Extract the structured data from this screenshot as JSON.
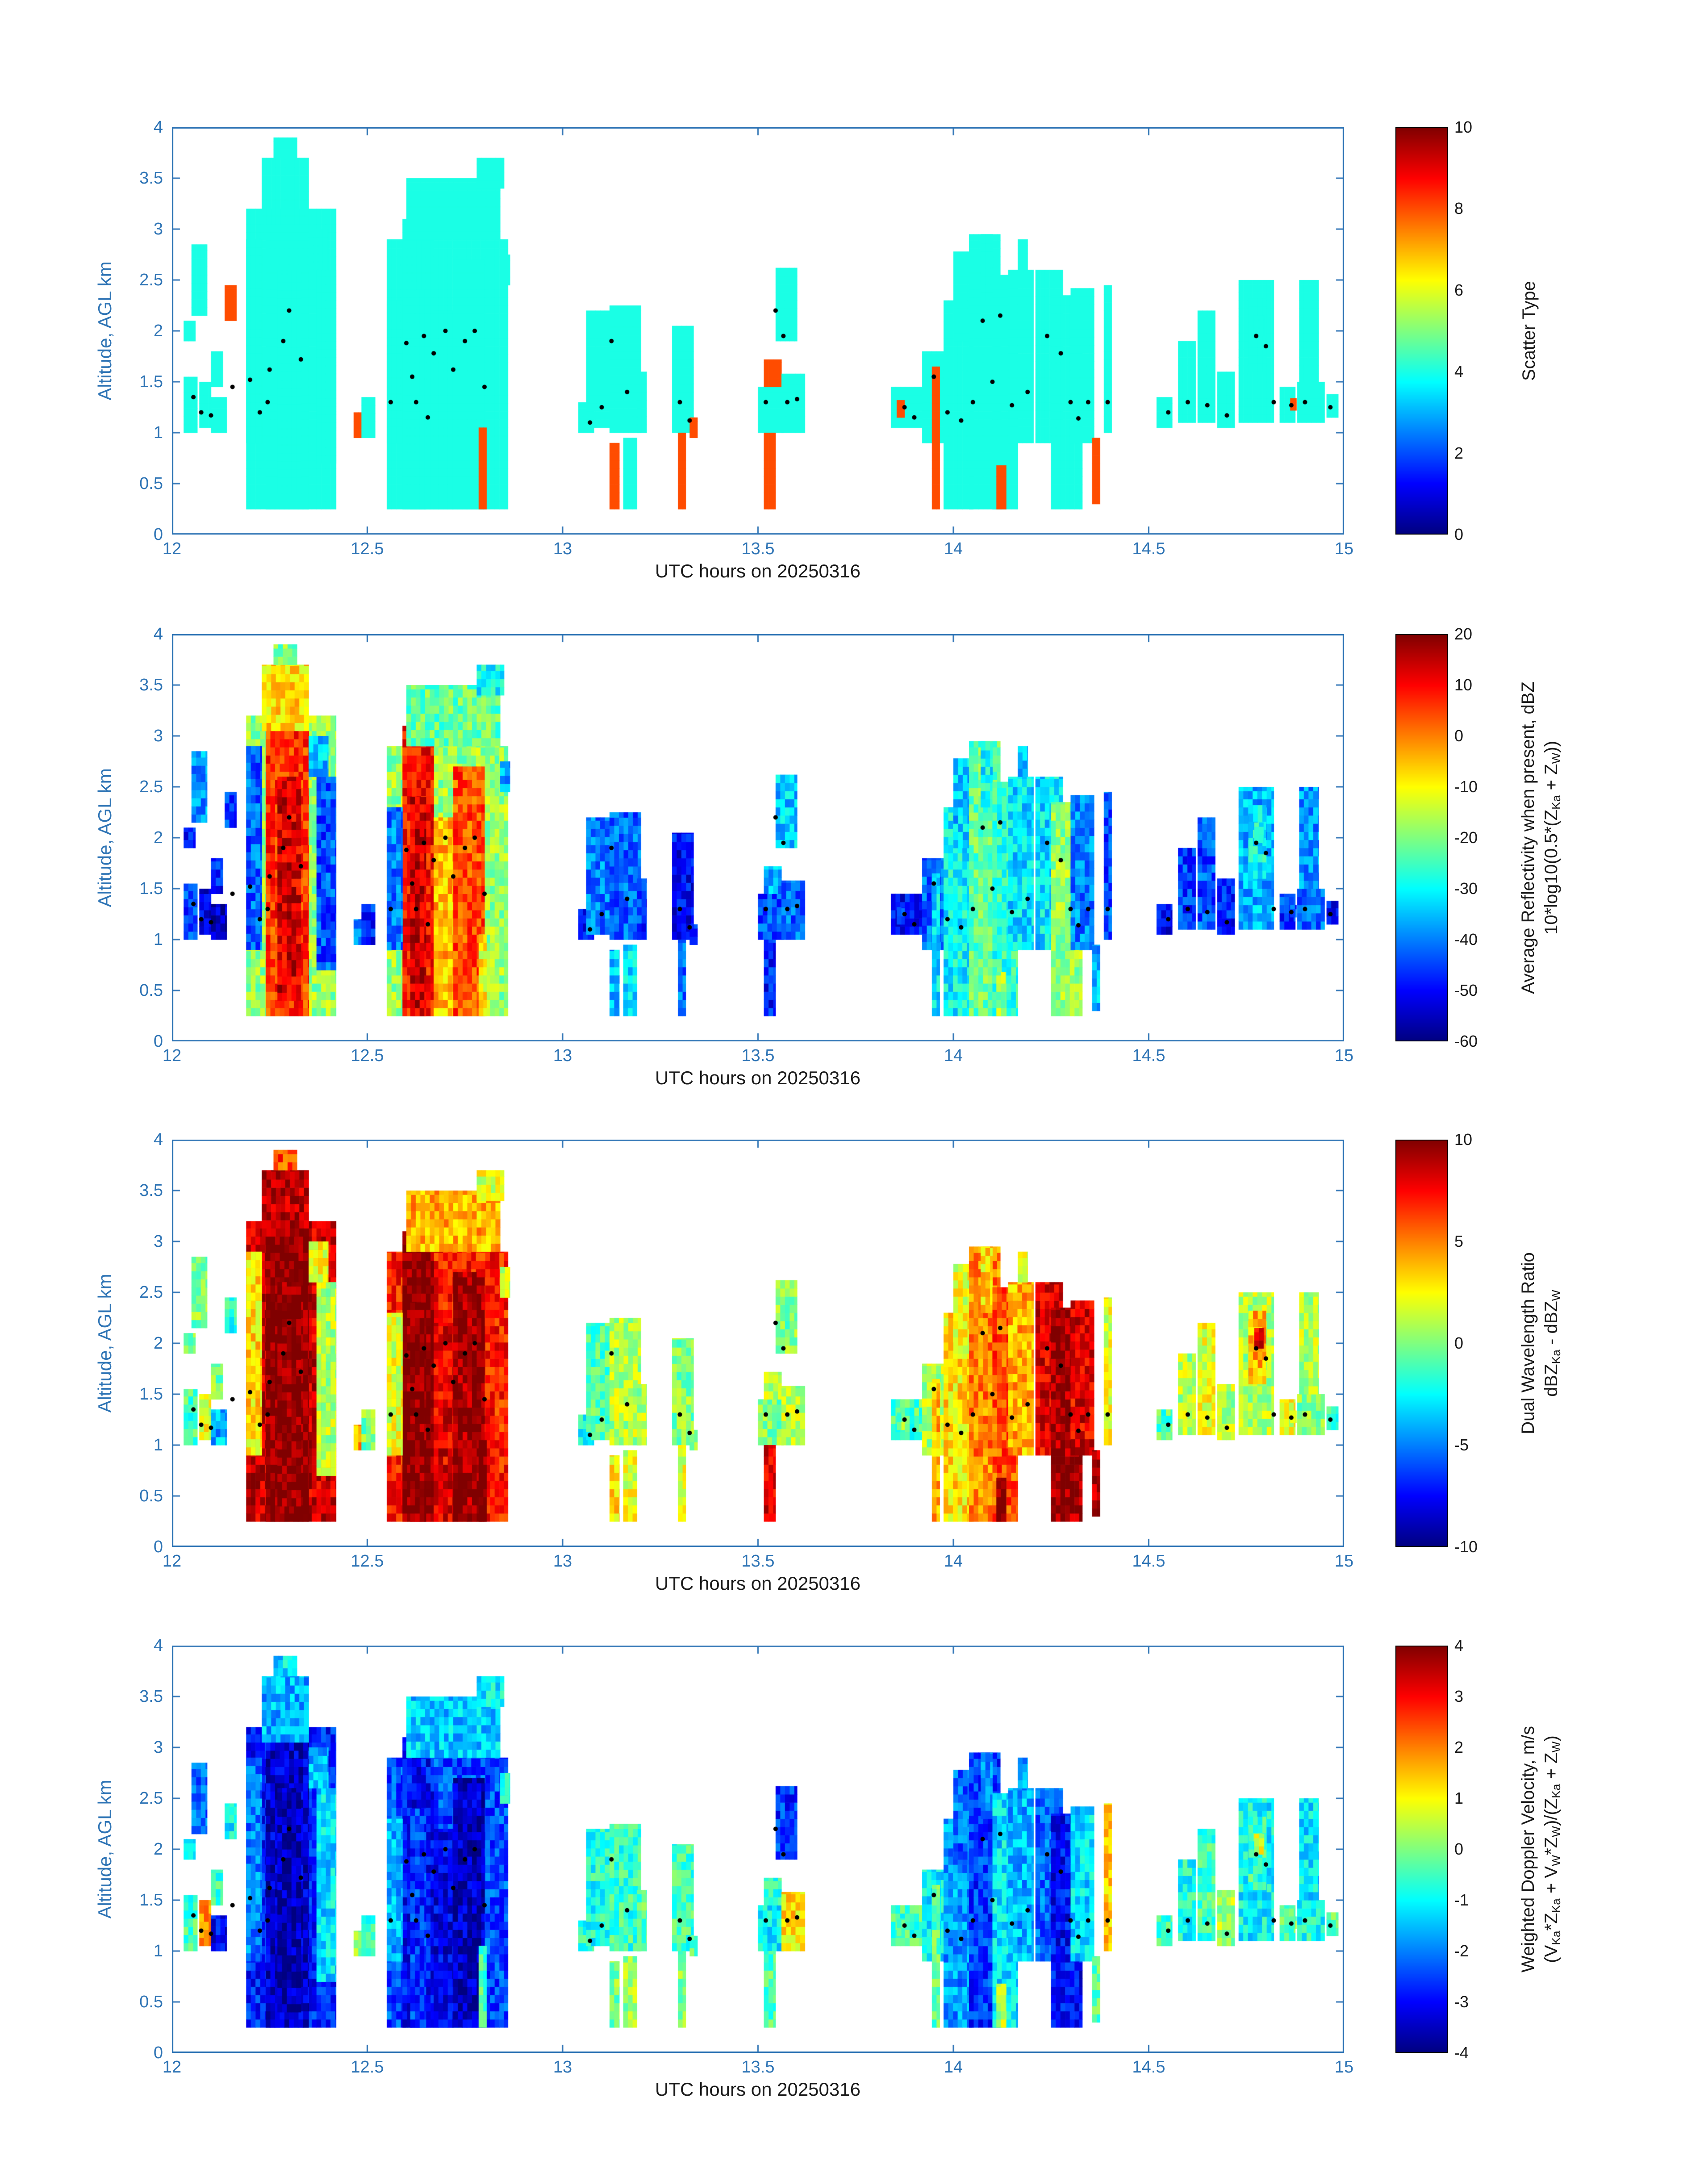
{
  "colors": {
    "axis": "#2e74b5",
    "text": "#1a1a1a",
    "dot": "#000000",
    "background": "#ffffff",
    "colormap": "jet"
  },
  "x_axis": {
    "label": "UTC hours on 20250316",
    "min": 12,
    "max": 15,
    "ticks": [
      12,
      12.5,
      13,
      13.5,
      14,
      14.5,
      15
    ]
  },
  "y_axis": {
    "label": "Altitude, AGL km",
    "min": 0,
    "max": 4,
    "ticks": [
      0,
      0.5,
      1,
      1.5,
      2,
      2.5,
      3,
      3.5,
      4
    ]
  },
  "panels": [
    {
      "id": "scatter-type",
      "colorbar": {
        "min": 0,
        "max": 10,
        "ticks": [
          0,
          2,
          4,
          6,
          8,
          10
        ],
        "label_lines": [
          [
            {
              "t": "Scatter Type"
            }
          ]
        ]
      }
    },
    {
      "id": "average-reflectivity",
      "colorbar": {
        "min": -60,
        "max": 20,
        "ticks": [
          -60,
          -50,
          -40,
          -30,
          -20,
          -10,
          0,
          10,
          20
        ],
        "label_lines": [
          [
            {
              "t": "Average Reflectivity when present, dBZ"
            }
          ],
          [
            {
              "t": "10*log10(0.5*(Z"
            },
            {
              "t": "Ka",
              "sub": true
            },
            {
              "t": " + Z"
            },
            {
              "t": "W",
              "sub": true
            },
            {
              "t": "))"
            }
          ]
        ]
      }
    },
    {
      "id": "dual-wavelength-ratio",
      "colorbar": {
        "min": -10,
        "max": 10,
        "ticks": [
          -10,
          -5,
          0,
          5,
          10
        ],
        "label_lines": [
          [
            {
              "t": "Dual Wavelength Ratio"
            }
          ],
          [
            {
              "t": "dBZ"
            },
            {
              "t": "Ka",
              "sub": true
            },
            {
              "t": " - dBZ"
            },
            {
              "t": "W",
              "sub": true
            }
          ]
        ]
      }
    },
    {
      "id": "weighted-doppler-velocity",
      "colorbar": {
        "min": -4,
        "max": 4,
        "ticks": [
          -4,
          -3,
          -2,
          -1,
          0,
          1,
          2,
          3,
          4
        ],
        "label_lines": [
          [
            {
              "t": "Weighted Doppler Velocity, m/s"
            }
          ],
          [
            {
              "t": "(V"
            },
            {
              "t": "Ka",
              "sub": true
            },
            {
              "t": "*Z"
            },
            {
              "t": "Ka",
              "sub": true
            },
            {
              "t": " + V"
            },
            {
              "t": "W",
              "sub": true
            },
            {
              "t": "*Z"
            },
            {
              "t": "W",
              "sub": true
            },
            {
              "t": ")/(Z"
            },
            {
              "t": "Ka",
              "sub": true
            },
            {
              "t": " + Z"
            },
            {
              "t": "W",
              "sub": true
            },
            {
              "t": ")"
            }
          ]
        ]
      }
    }
  ],
  "chart_data": {
    "type": "heatmap",
    "x_unit": "UTC hours",
    "y_unit": "km AGL",
    "cell_format": [
      "t_start_h",
      "t_end_h",
      "alt_base_km",
      "alt_top_km",
      "scatter_type",
      "reflectivity_dBZ",
      "dual_wavelength_ratio_dB",
      "doppler_velocity_ms"
    ],
    "cells": [
      [
        12.03,
        12.065,
        1.0,
        1.55,
        4,
        -45,
        -1,
        -0.5
      ],
      [
        12.03,
        12.06,
        1.9,
        2.1,
        4,
        -50,
        0,
        -1.0
      ],
      [
        12.05,
        12.09,
        2.15,
        2.85,
        4,
        -38,
        0,
        -2.2
      ],
      [
        12.07,
        12.1,
        1.05,
        1.5,
        4,
        -52,
        2,
        1.8
      ],
      [
        12.1,
        12.14,
        1.0,
        1.35,
        4,
        -55,
        -4,
        -3.0
      ],
      [
        12.1,
        12.13,
        1.45,
        1.8,
        4,
        -48,
        0,
        -0.5
      ],
      [
        12.135,
        12.165,
        2.1,
        2.45,
        8,
        -45,
        -2,
        -1.0
      ],
      [
        12.19,
        12.42,
        0.25,
        3.2,
        4,
        -18,
        8.5,
        -2.8
      ],
      [
        12.24,
        12.35,
        0.25,
        3.05,
        4,
        6,
        10,
        -3.4
      ],
      [
        12.27,
        12.33,
        0.4,
        2.6,
        4,
        13,
        10,
        -3.6
      ],
      [
        12.23,
        12.35,
        3.05,
        3.7,
        4,
        -8,
        9,
        -1.6
      ],
      [
        12.26,
        12.32,
        3.7,
        3.9,
        4,
        -20,
        6,
        -1.2
      ],
      [
        12.19,
        12.23,
        0.9,
        2.9,
        4,
        -42,
        3,
        -2.0
      ],
      [
        12.37,
        12.42,
        0.7,
        2.6,
        4,
        -44,
        1,
        -1.2
      ],
      [
        12.35,
        12.4,
        2.6,
        3.0,
        4,
        -35,
        2,
        -1.5
      ],
      [
        12.465,
        12.485,
        0.95,
        1.2,
        8,
        -38,
        4,
        0.2
      ],
      [
        12.485,
        12.52,
        0.95,
        1.35,
        4,
        -48,
        0,
        -0.5
      ],
      [
        12.55,
        12.86,
        0.25,
        2.9,
        4,
        -18,
        7,
        -2.4
      ],
      [
        12.59,
        12.67,
        0.25,
        3.1,
        4,
        9,
        10,
        -3.0
      ],
      [
        12.61,
        12.65,
        0.25,
        2.4,
        4,
        14,
        10,
        -2.6
      ],
      [
        12.67,
        12.72,
        0.25,
        2.2,
        4,
        -5,
        8,
        -3.2
      ],
      [
        12.72,
        12.8,
        0.25,
        2.7,
        4,
        4,
        9.5,
        -3.5
      ],
      [
        12.6,
        12.84,
        2.9,
        3.5,
        4,
        -22,
        4,
        -1.4
      ],
      [
        12.78,
        12.85,
        3.4,
        3.7,
        4,
        -30,
        2,
        -1.0
      ],
      [
        12.55,
        12.59,
        0.9,
        2.3,
        4,
        -40,
        2,
        -1.6
      ],
      [
        12.785,
        12.805,
        0.25,
        1.05,
        8,
        -10,
        10,
        -0.5
      ],
      [
        12.84,
        12.865,
        2.45,
        2.75,
        4,
        -38,
        1,
        -1.0
      ],
      [
        13.04,
        13.08,
        1.0,
        1.3,
        4,
        -48,
        -2,
        -0.6
      ],
      [
        13.06,
        13.12,
        1.05,
        2.2,
        4,
        -40,
        -1,
        -0.8
      ],
      [
        13.12,
        13.145,
        0.25,
        0.9,
        8,
        -35,
        3,
        0.0
      ],
      [
        13.12,
        13.2,
        1.0,
        2.25,
        4,
        -42,
        1,
        -0.6
      ],
      [
        13.155,
        13.19,
        0.25,
        0.95,
        4,
        -32,
        2,
        0.3
      ],
      [
        13.19,
        13.215,
        1.0,
        1.6,
        4,
        -46,
        1,
        -0.3
      ],
      [
        13.28,
        13.335,
        1.0,
        2.05,
        4,
        -50,
        0,
        -0.5
      ],
      [
        13.295,
        13.315,
        0.25,
        1.0,
        8,
        -42,
        2,
        0.0
      ],
      [
        13.325,
        13.345,
        0.95,
        1.15,
        8,
        -46,
        1,
        -0.2
      ],
      [
        13.5,
        13.565,
        1.0,
        1.45,
        4,
        -44,
        0,
        -1.0
      ],
      [
        13.515,
        13.545,
        0.25,
        1.0,
        8,
        -48,
        8,
        -0.3
      ],
      [
        13.515,
        13.56,
        1.45,
        1.72,
        8,
        -36,
        1,
        -0.6
      ],
      [
        13.545,
        13.6,
        1.9,
        2.62,
        4,
        -34,
        0,
        -2.6
      ],
      [
        13.56,
        13.62,
        1.0,
        1.58,
        4,
        -42,
        1,
        1.2
      ],
      [
        13.84,
        13.92,
        1.05,
        1.45,
        4,
        -50,
        -1,
        -0.5
      ],
      [
        13.855,
        13.875,
        1.15,
        1.32,
        8,
        -46,
        0,
        -0.2
      ],
      [
        13.92,
        13.99,
        0.9,
        1.8,
        4,
        -42,
        1,
        -1.0
      ],
      [
        13.945,
        13.965,
        0.25,
        1.65,
        8,
        -32,
        4,
        -0.2
      ],
      [
        13.975,
        14.05,
        0.25,
        2.3,
        4,
        -30,
        3,
        -1.8
      ],
      [
        14.0,
        14.07,
        1.9,
        2.78,
        4,
        -34,
        2,
        -2.2
      ],
      [
        14.04,
        14.12,
        0.25,
        2.95,
        4,
        -22,
        5,
        -2.6
      ],
      [
        14.07,
        14.1,
        2.3,
        2.95,
        4,
        -30,
        3,
        -2.0
      ],
      [
        14.1,
        14.165,
        0.25,
        2.55,
        4,
        -26,
        6,
        -1.2
      ],
      [
        14.11,
        14.135,
        0.25,
        0.68,
        8,
        -18,
        10,
        0.4
      ],
      [
        14.14,
        14.205,
        0.9,
        2.6,
        4,
        -32,
        4,
        -1.6
      ],
      [
        14.165,
        14.19,
        2.6,
        2.9,
        4,
        -36,
        2,
        -1.8
      ],
      [
        14.21,
        14.28,
        0.9,
        2.6,
        4,
        -32,
        8,
        -2.2
      ],
      [
        14.25,
        14.33,
        0.25,
        2.35,
        4,
        -18,
        9.5,
        -3.0
      ],
      [
        14.3,
        14.36,
        0.9,
        2.42,
        4,
        -40,
        8,
        -1.2
      ],
      [
        14.355,
        14.375,
        0.3,
        0.95,
        8,
        -36,
        9,
        -0.2
      ],
      [
        14.385,
        14.405,
        1.0,
        2.45,
        4,
        -44,
        2,
        1.3
      ],
      [
        14.52,
        14.56,
        1.05,
        1.35,
        4,
        -50,
        -1,
        -0.5
      ],
      [
        14.575,
        14.62,
        1.1,
        1.9,
        4,
        -46,
        1,
        -0.8
      ],
      [
        14.625,
        14.67,
        1.1,
        2.2,
        4,
        -44,
        2,
        -0.5
      ],
      [
        14.675,
        14.72,
        1.05,
        1.6,
        4,
        -48,
        1,
        0.3
      ],
      [
        14.73,
        14.82,
        1.1,
        2.5,
        4,
        -36,
        1,
        -1.0
      ],
      [
        14.755,
        14.8,
        1.6,
        2.32,
        4,
        -30,
        4,
        -0.6
      ],
      [
        14.77,
        14.795,
        1.95,
        2.15,
        4,
        -28,
        8,
        0.8
      ],
      [
        14.835,
        14.875,
        1.1,
        1.45,
        4,
        -46,
        2,
        -0.3
      ],
      [
        14.862,
        14.878,
        1.22,
        1.34,
        8,
        -44,
        3,
        0.0
      ],
      [
        14.88,
        14.95,
        1.1,
        1.5,
        4,
        -42,
        0,
        -0.8
      ],
      [
        14.885,
        14.935,
        1.5,
        2.5,
        4,
        -38,
        1,
        -1.2
      ],
      [
        14.955,
        14.985,
        1.15,
        1.38,
        4,
        -50,
        -1,
        -0.2
      ]
    ],
    "dots": [
      [
        12.055,
        1.35
      ],
      [
        12.075,
        1.2
      ],
      [
        12.1,
        1.17
      ],
      [
        12.155,
        1.45
      ],
      [
        12.2,
        1.52
      ],
      [
        12.225,
        1.2
      ],
      [
        12.245,
        1.3
      ],
      [
        12.25,
        1.62
      ],
      [
        12.285,
        1.9
      ],
      [
        12.3,
        2.2
      ],
      [
        12.33,
        1.72
      ],
      [
        12.56,
        1.3
      ],
      [
        12.6,
        1.88
      ],
      [
        12.615,
        1.55
      ],
      [
        12.625,
        1.3
      ],
      [
        12.645,
        1.95
      ],
      [
        12.655,
        1.15
      ],
      [
        12.67,
        1.78
      ],
      [
        12.7,
        2.0
      ],
      [
        12.72,
        1.62
      ],
      [
        12.75,
        1.9
      ],
      [
        12.775,
        2.0
      ],
      [
        12.8,
        1.45
      ],
      [
        13.07,
        1.1
      ],
      [
        13.1,
        1.25
      ],
      [
        13.125,
        1.9
      ],
      [
        13.165,
        1.4
      ],
      [
        13.3,
        1.3
      ],
      [
        13.325,
        1.12
      ],
      [
        13.52,
        1.3
      ],
      [
        13.545,
        2.2
      ],
      [
        13.565,
        1.95
      ],
      [
        13.575,
        1.3
      ],
      [
        13.6,
        1.33
      ],
      [
        13.875,
        1.25
      ],
      [
        13.9,
        1.15
      ],
      [
        13.95,
        1.55
      ],
      [
        13.985,
        1.2
      ],
      [
        14.02,
        1.12
      ],
      [
        14.05,
        1.3
      ],
      [
        14.075,
        2.1
      ],
      [
        14.1,
        1.5
      ],
      [
        14.12,
        2.15
      ],
      [
        14.15,
        1.27
      ],
      [
        14.19,
        1.4
      ],
      [
        14.24,
        1.95
      ],
      [
        14.275,
        1.78
      ],
      [
        14.3,
        1.3
      ],
      [
        14.32,
        1.14
      ],
      [
        14.345,
        1.3
      ],
      [
        14.395,
        1.3
      ],
      [
        14.55,
        1.2
      ],
      [
        14.6,
        1.3
      ],
      [
        14.65,
        1.27
      ],
      [
        14.7,
        1.17
      ],
      [
        14.775,
        1.95
      ],
      [
        14.8,
        1.85
      ],
      [
        14.82,
        1.3
      ],
      [
        14.865,
        1.27
      ],
      [
        14.9,
        1.3
      ],
      [
        14.965,
        1.25
      ]
    ]
  }
}
